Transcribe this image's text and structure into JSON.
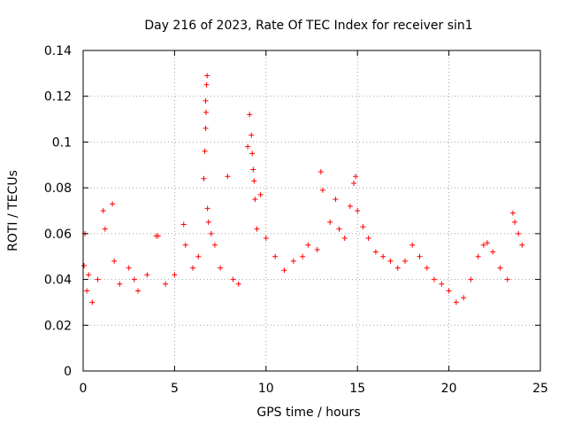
{
  "chart_data": {
    "type": "scatter",
    "title": "Day 216 of 2023, Rate Of TEC Index for receiver sin1",
    "xlabel": "GPS time / hours",
    "ylabel": "ROTI / TECUs",
    "xlim": [
      0,
      25
    ],
    "ylim": [
      0,
      0.14
    ],
    "x_ticks": [
      "0",
      "5",
      "10",
      "15",
      "20",
      "25"
    ],
    "y_ticks": [
      "0",
      "0.02",
      "0.04",
      "0.06",
      "0.08",
      "0.1",
      "0.12",
      "0.14"
    ],
    "grid": true,
    "legend": "none",
    "marker": "plus",
    "color": "#ff0000",
    "series": [
      {
        "x": [
          0.05,
          0.1,
          0.2,
          0.3,
          0.5,
          0.8,
          1.1,
          1.2,
          1.6,
          1.7,
          2.0,
          2.5,
          2.8,
          3.0,
          3.5,
          4.0,
          4.1,
          4.5,
          5.0,
          5.5,
          5.6,
          6.0,
          6.3,
          6.6,
          6.65,
          6.7,
          6.7,
          6.72,
          6.75,
          6.78,
          6.8,
          6.85,
          7.0,
          7.2,
          7.5,
          7.9,
          8.2,
          8.5,
          9.0,
          9.1,
          9.2,
          9.25,
          9.3,
          9.35,
          9.4,
          9.5,
          9.7,
          10.0,
          10.5,
          11.0,
          11.5,
          12.0,
          12.3,
          12.8,
          13.0,
          13.1,
          13.5,
          13.8,
          14.0,
          14.3,
          14.6,
          14.8,
          14.9,
          15.0,
          15.3,
          15.6,
          16.0,
          16.4,
          16.8,
          17.2,
          17.6,
          18.0,
          18.4,
          18.8,
          19.2,
          19.6,
          20.0,
          20.4,
          20.8,
          21.2,
          21.6,
          21.9,
          22.1,
          22.4,
          22.8,
          23.2,
          23.5,
          23.6,
          23.8,
          24.0
        ],
        "y": [
          0.046,
          0.06,
          0.035,
          0.042,
          0.03,
          0.04,
          0.07,
          0.062,
          0.073,
          0.048,
          0.038,
          0.045,
          0.04,
          0.035,
          0.042,
          0.059,
          0.059,
          0.038,
          0.042,
          0.064,
          0.055,
          0.045,
          0.05,
          0.084,
          0.096,
          0.106,
          0.118,
          0.113,
          0.125,
          0.129,
          0.071,
          0.065,
          0.06,
          0.055,
          0.045,
          0.085,
          0.04,
          0.038,
          0.098,
          0.112,
          0.103,
          0.095,
          0.088,
          0.083,
          0.075,
          0.062,
          0.077,
          0.058,
          0.05,
          0.044,
          0.048,
          0.05,
          0.055,
          0.053,
          0.087,
          0.079,
          0.065,
          0.075,
          0.062,
          0.058,
          0.072,
          0.082,
          0.085,
          0.07,
          0.063,
          0.058,
          0.052,
          0.05,
          0.048,
          0.045,
          0.048,
          0.055,
          0.05,
          0.045,
          0.04,
          0.038,
          0.035,
          0.03,
          0.032,
          0.04,
          0.05,
          0.055,
          0.056,
          0.052,
          0.045,
          0.04,
          0.069,
          0.065,
          0.06,
          0.055
        ]
      }
    ]
  }
}
